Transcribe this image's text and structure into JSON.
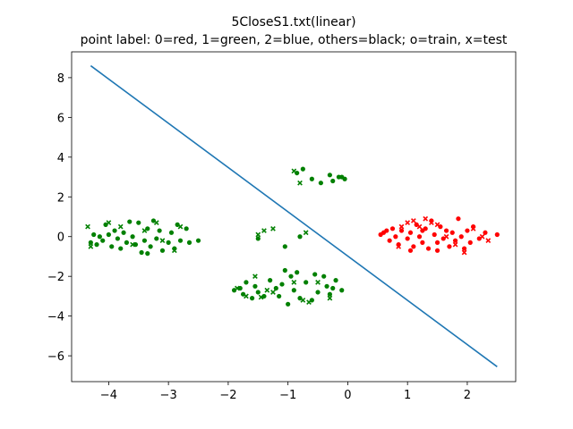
{
  "chart_data": {
    "type": "scatter",
    "title": "5CloseS1.txt(linear)",
    "subtitle": "point label: 0=red, 1=green, 2=blue, others=black; o=train, x=test",
    "xlabel": "",
    "ylabel": "",
    "xlim": [
      -4.62,
      2.81
    ],
    "ylim": [
      -7.3,
      9.3
    ],
    "xticks": [
      -4,
      -3,
      -2,
      -1,
      0,
      1,
      2
    ],
    "yticks": [
      -6,
      -4,
      -2,
      0,
      2,
      4,
      6,
      8
    ],
    "xtick_labels": [
      "−4",
      "−3",
      "−2",
      "−1",
      "0",
      "1",
      "2"
    ],
    "ytick_labels": [
      "−6",
      "−4",
      "−2",
      "0",
      "2",
      "4",
      "6",
      "8"
    ],
    "grid": false,
    "colors": {
      "red": "#ff0000",
      "green": "#008000",
      "line": "#1f77b4"
    },
    "series": [
      {
        "label_class": 1,
        "color": "green",
        "marker": "o",
        "set": "train",
        "points": [
          [
            -4.3,
            -0.3
          ],
          [
            -4.2,
            -0.4
          ],
          [
            -4.15,
            0.0
          ],
          [
            -4.1,
            -0.2
          ],
          [
            -4.0,
            0.1
          ],
          [
            -3.95,
            -0.5
          ],
          [
            -3.9,
            0.3
          ],
          [
            -3.85,
            -0.1
          ],
          [
            -3.8,
            -0.6
          ],
          [
            -3.75,
            0.2
          ],
          [
            -3.7,
            -0.3
          ],
          [
            -3.6,
            0.0
          ],
          [
            -3.55,
            -0.4
          ],
          [
            -3.5,
            0.7
          ],
          [
            -3.45,
            -0.8
          ],
          [
            -3.4,
            -0.2
          ],
          [
            -3.35,
            0.4
          ],
          [
            -3.3,
            -0.5
          ],
          [
            -3.25,
            0.8
          ],
          [
            -3.2,
            -0.1
          ],
          [
            -3.15,
            0.3
          ],
          [
            -3.1,
            -0.7
          ],
          [
            -3.0,
            -0.3
          ],
          [
            -2.95,
            0.2
          ],
          [
            -2.9,
            -0.6
          ],
          [
            -2.85,
            0.6
          ],
          [
            -2.8,
            -0.2
          ],
          [
            -2.7,
            0.4
          ],
          [
            -2.65,
            -0.3
          ],
          [
            -2.5,
            -0.2
          ],
          [
            -4.05,
            0.6
          ],
          [
            -3.65,
            0.75
          ],
          [
            -3.35,
            -0.85
          ],
          [
            -4.25,
            0.1
          ],
          [
            -1.9,
            -2.7
          ],
          [
            -1.8,
            -2.6
          ],
          [
            -1.75,
            -2.9
          ],
          [
            -1.7,
            -2.3
          ],
          [
            -1.6,
            -3.1
          ],
          [
            -1.55,
            -2.5
          ],
          [
            -1.5,
            -2.8
          ],
          [
            -1.4,
            -3.0
          ],
          [
            -1.3,
            -2.2
          ],
          [
            -1.2,
            -2.6
          ],
          [
            -1.15,
            -3.0
          ],
          [
            -1.1,
            -2.4
          ],
          [
            -1.0,
            -3.4
          ],
          [
            -0.95,
            -2.0
          ],
          [
            -0.9,
            -2.7
          ],
          [
            -0.85,
            -1.8
          ],
          [
            -0.8,
            -3.1
          ],
          [
            -0.7,
            -2.3
          ],
          [
            -0.6,
            -3.2
          ],
          [
            -0.55,
            -1.9
          ],
          [
            -0.5,
            -2.8
          ],
          [
            -0.4,
            -2.0
          ],
          [
            -0.35,
            -2.5
          ],
          [
            -0.3,
            -2.9
          ],
          [
            -0.2,
            -2.2
          ],
          [
            -0.1,
            -2.7
          ],
          [
            -1.05,
            -1.7
          ],
          [
            -0.25,
            -2.6
          ],
          [
            -1.5,
            -0.1
          ],
          [
            -1.05,
            -0.5
          ],
          [
            -0.8,
            0.0
          ],
          [
            -0.85,
            3.2
          ],
          [
            -0.75,
            3.4
          ],
          [
            -0.6,
            2.9
          ],
          [
            -0.45,
            2.7
          ],
          [
            -0.3,
            3.1
          ],
          [
            -0.25,
            2.8
          ],
          [
            -0.15,
            3.0
          ],
          [
            -0.05,
            2.9
          ],
          [
            -0.1,
            3.0
          ]
        ]
      },
      {
        "label_class": 1,
        "color": "green",
        "marker": "x",
        "set": "test",
        "points": [
          [
            -4.35,
            0.5
          ],
          [
            -4.3,
            -0.5
          ],
          [
            -4.0,
            0.7
          ],
          [
            -3.8,
            0.5
          ],
          [
            -3.6,
            -0.4
          ],
          [
            -3.4,
            0.3
          ],
          [
            -3.2,
            0.7
          ],
          [
            -3.1,
            -0.2
          ],
          [
            -2.9,
            -0.7
          ],
          [
            -2.8,
            0.5
          ],
          [
            -1.85,
            -2.6
          ],
          [
            -1.7,
            -3.0
          ],
          [
            -1.55,
            -2.0
          ],
          [
            -1.45,
            -3.05
          ],
          [
            -1.35,
            -2.7
          ],
          [
            -1.25,
            -2.8
          ],
          [
            -0.9,
            -2.3
          ],
          [
            -0.75,
            -3.2
          ],
          [
            -0.65,
            -3.3
          ],
          [
            -0.5,
            -2.3
          ],
          [
            -0.3,
            -3.1
          ],
          [
            -1.5,
            0.1
          ],
          [
            -1.4,
            0.3
          ],
          [
            -1.25,
            0.4
          ],
          [
            -0.7,
            0.2
          ],
          [
            -0.8,
            2.7
          ],
          [
            -0.9,
            3.3
          ]
        ]
      },
      {
        "label_class": 0,
        "color": "red",
        "marker": "o",
        "set": "train",
        "points": [
          [
            0.55,
            0.1
          ],
          [
            0.6,
            0.2
          ],
          [
            0.65,
            0.3
          ],
          [
            0.7,
            -0.2
          ],
          [
            0.75,
            0.4
          ],
          [
            0.8,
            0.0
          ],
          [
            0.85,
            -0.4
          ],
          [
            0.9,
            0.3
          ],
          [
            1.0,
            -0.1
          ],
          [
            1.05,
            0.2
          ],
          [
            1.1,
            -0.5
          ],
          [
            1.15,
            0.6
          ],
          [
            1.2,
            0.0
          ],
          [
            1.25,
            -0.3
          ],
          [
            1.3,
            0.4
          ],
          [
            1.35,
            -0.6
          ],
          [
            1.4,
            0.8
          ],
          [
            1.45,
            0.1
          ],
          [
            1.5,
            -0.3
          ],
          [
            1.55,
            0.5
          ],
          [
            1.6,
            -0.1
          ],
          [
            1.65,
            0.3
          ],
          [
            1.7,
            -0.5
          ],
          [
            1.75,
            0.2
          ],
          [
            1.8,
            -0.2
          ],
          [
            1.85,
            0.9
          ],
          [
            1.9,
            0.0
          ],
          [
            1.95,
            -0.6
          ],
          [
            2.0,
            0.3
          ],
          [
            2.05,
            -0.3
          ],
          [
            2.1,
            0.5
          ],
          [
            2.2,
            -0.1
          ],
          [
            2.3,
            0.2
          ],
          [
            2.5,
            0.1
          ],
          [
            1.25,
            0.3
          ],
          [
            1.5,
            -0.7
          ],
          [
            1.05,
            -0.7
          ]
        ]
      },
      {
        "label_class": 0,
        "color": "red",
        "marker": "x",
        "set": "test",
        "points": [
          [
            0.9,
            0.5
          ],
          [
            1.0,
            0.7
          ],
          [
            1.1,
            0.8
          ],
          [
            1.2,
            0.5
          ],
          [
            1.3,
            0.9
          ],
          [
            1.4,
            0.7
          ],
          [
            1.5,
            0.6
          ],
          [
            1.65,
            0.0
          ],
          [
            1.8,
            -0.4
          ],
          [
            1.95,
            -0.8
          ],
          [
            2.1,
            0.4
          ],
          [
            2.25,
            0.0
          ],
          [
            2.35,
            -0.2
          ],
          [
            0.85,
            -0.5
          ]
        ]
      }
    ],
    "decision_line": {
      "points": [
        [
          -4.3,
          8.6
        ],
        [
          2.5,
          -6.55
        ]
      ]
    }
  }
}
